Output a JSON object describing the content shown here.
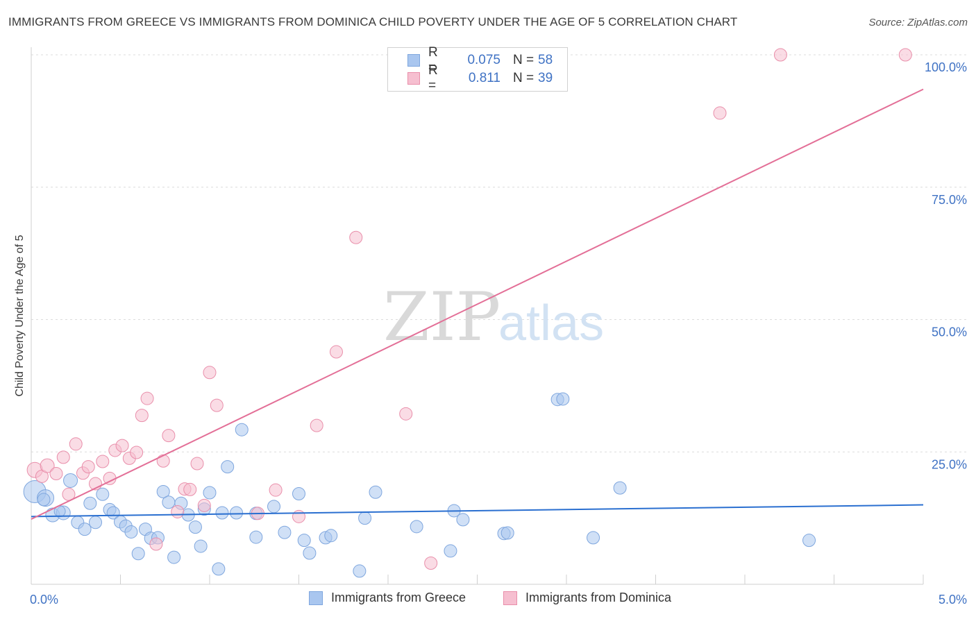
{
  "title": "IMMIGRANTS FROM GREECE VS IMMIGRANTS FROM DOMINICA CHILD POVERTY UNDER THE AGE OF 5 CORRELATION CHART",
  "source": "Source: ZipAtlas.com",
  "watermark": {
    "zip": "ZIP",
    "atlas": "atlas"
  },
  "legend": {
    "rows": [
      {
        "r_label": "R =",
        "r_value": "0.075",
        "n_label": "N =",
        "n_value": "58",
        "color": "#a9c6ef",
        "border": "#7ea6de"
      },
      {
        "r_label": "R =",
        "r_value": "0.811",
        "n_label": "N =",
        "n_value": "39",
        "color": "#f6bfd0",
        "border": "#e98eaa"
      }
    ]
  },
  "bottom_legend": {
    "greece": "Immigrants from Greece",
    "dominica": "Immigrants from Dominica"
  },
  "chart_data": {
    "type": "scatter",
    "title": "IMMIGRANTS FROM GREECE VS IMMIGRANTS FROM DOMINICA CHILD POVERTY UNDER THE AGE OF 5 CORRELATION CHART",
    "xlabel": "",
    "ylabel": "Child Poverty Under the Age of 5",
    "xlim": [
      0,
      5
    ],
    "ylim": [
      0,
      100
    ],
    "x_tick_labels": {
      "min": "0.0%",
      "max": "5.0%"
    },
    "y_ticks": [
      {
        "value": 25,
        "label": "25.0%"
      },
      {
        "value": 50,
        "label": "50.0%"
      },
      {
        "value": 75,
        "label": "75.0%"
      },
      {
        "value": 100,
        "label": "100.0%"
      }
    ],
    "series": [
      {
        "name": "Immigrants from Greece",
        "color": "#a9c6ef",
        "stroke": "#7ea6de",
        "line_color": "#2a6fd0",
        "trend": {
          "x0": 0,
          "y0": 12.8,
          "x1": 5,
          "y1": 15.0
        },
        "points": [
          {
            "x": 0.02,
            "y": 17.5,
            "s": 16
          },
          {
            "x": 0.08,
            "y": 16.3,
            "s": 12
          },
          {
            "x": 0.12,
            "y": 13.1,
            "s": 10
          },
          {
            "x": 0.18,
            "y": 13.5,
            "s": 10
          },
          {
            "x": 0.22,
            "y": 19.6,
            "s": 10
          },
          {
            "x": 0.26,
            "y": 11.7,
            "s": 9
          },
          {
            "x": 0.3,
            "y": 10.4,
            "s": 9
          },
          {
            "x": 0.33,
            "y": 15.3,
            "s": 9
          },
          {
            "x": 0.36,
            "y": 11.7,
            "s": 9
          },
          {
            "x": 0.4,
            "y": 17.0,
            "s": 9
          },
          {
            "x": 0.44,
            "y": 14.1,
            "s": 9
          },
          {
            "x": 0.46,
            "y": 13.5,
            "s": 9
          },
          {
            "x": 0.5,
            "y": 11.8,
            "s": 9
          },
          {
            "x": 0.53,
            "y": 11.0,
            "s": 9
          },
          {
            "x": 0.56,
            "y": 9.9,
            "s": 9
          },
          {
            "x": 0.6,
            "y": 5.8,
            "s": 9
          },
          {
            "x": 0.64,
            "y": 10.4,
            "s": 9
          },
          {
            "x": 0.67,
            "y": 8.7,
            "s": 9
          },
          {
            "x": 0.71,
            "y": 8.8,
            "s": 9
          },
          {
            "x": 0.74,
            "y": 17.5,
            "s": 9
          },
          {
            "x": 0.77,
            "y": 15.5,
            "s": 9
          },
          {
            "x": 0.8,
            "y": 5.1,
            "s": 9
          },
          {
            "x": 0.84,
            "y": 15.3,
            "s": 9
          },
          {
            "x": 0.88,
            "y": 13.1,
            "s": 9
          },
          {
            "x": 0.92,
            "y": 10.8,
            "s": 9
          },
          {
            "x": 0.95,
            "y": 7.2,
            "s": 9
          },
          {
            "x": 0.97,
            "y": 14.2,
            "s": 9
          },
          {
            "x": 1.0,
            "y": 17.3,
            "s": 9
          },
          {
            "x": 1.05,
            "y": 2.9,
            "s": 9
          },
          {
            "x": 1.07,
            "y": 13.5,
            "s": 9
          },
          {
            "x": 1.1,
            "y": 22.2,
            "s": 9
          },
          {
            "x": 1.15,
            "y": 13.5,
            "s": 9
          },
          {
            "x": 1.18,
            "y": 29.2,
            "s": 9
          },
          {
            "x": 1.26,
            "y": 8.9,
            "s": 9
          },
          {
            "x": 1.26,
            "y": 13.4,
            "s": 9
          },
          {
            "x": 1.36,
            "y": 14.7,
            "s": 9
          },
          {
            "x": 1.42,
            "y": 9.8,
            "s": 9
          },
          {
            "x": 1.5,
            "y": 17.1,
            "s": 9
          },
          {
            "x": 1.53,
            "y": 8.3,
            "s": 9
          },
          {
            "x": 1.56,
            "y": 5.9,
            "s": 9
          },
          {
            "x": 1.65,
            "y": 8.8,
            "s": 9
          },
          {
            "x": 1.68,
            "y": 9.2,
            "s": 9
          },
          {
            "x": 1.84,
            "y": 2.5,
            "s": 9
          },
          {
            "x": 1.87,
            "y": 12.5,
            "s": 9
          },
          {
            "x": 1.93,
            "y": 17.4,
            "s": 9
          },
          {
            "x": 2.16,
            "y": 10.9,
            "s": 9
          },
          {
            "x": 2.35,
            "y": 6.3,
            "s": 9
          },
          {
            "x": 2.37,
            "y": 13.9,
            "s": 9
          },
          {
            "x": 2.42,
            "y": 12.2,
            "s": 9
          },
          {
            "x": 2.65,
            "y": 9.6,
            "s": 9
          },
          {
            "x": 2.67,
            "y": 9.7,
            "s": 9
          },
          {
            "x": 2.95,
            "y": 34.9,
            "s": 9
          },
          {
            "x": 2.98,
            "y": 35.0,
            "s": 9
          },
          {
            "x": 3.15,
            "y": 8.8,
            "s": 9
          },
          {
            "x": 3.3,
            "y": 18.2,
            "s": 9
          },
          {
            "x": 4.36,
            "y": 8.3,
            "s": 9
          },
          {
            "x": 0.16,
            "y": 13.8,
            "s": 8
          },
          {
            "x": 0.07,
            "y": 16.0,
            "s": 9
          }
        ]
      },
      {
        "name": "Immigrants from Dominica",
        "color": "#f6bfd0",
        "stroke": "#e98eaa",
        "line_color": "#e36f97",
        "trend": {
          "x0": 0,
          "y0": 12.3,
          "x1": 5,
          "y1": 93.5
        },
        "points": [
          {
            "x": 0.02,
            "y": 21.6,
            "s": 11
          },
          {
            "x": 0.06,
            "y": 20.4,
            "s": 9
          },
          {
            "x": 0.09,
            "y": 22.4,
            "s": 10
          },
          {
            "x": 0.14,
            "y": 20.9,
            "s": 9
          },
          {
            "x": 0.18,
            "y": 24.0,
            "s": 9
          },
          {
            "x": 0.21,
            "y": 17.0,
            "s": 9
          },
          {
            "x": 0.25,
            "y": 26.5,
            "s": 9
          },
          {
            "x": 0.29,
            "y": 21.0,
            "s": 9
          },
          {
            "x": 0.32,
            "y": 22.2,
            "s": 9
          },
          {
            "x": 0.36,
            "y": 19.0,
            "s": 9
          },
          {
            "x": 0.4,
            "y": 23.2,
            "s": 9
          },
          {
            "x": 0.44,
            "y": 20.0,
            "s": 9
          },
          {
            "x": 0.47,
            "y": 25.3,
            "s": 9
          },
          {
            "x": 0.51,
            "y": 26.2,
            "s": 9
          },
          {
            "x": 0.55,
            "y": 23.8,
            "s": 9
          },
          {
            "x": 0.59,
            "y": 24.9,
            "s": 9
          },
          {
            "x": 0.62,
            "y": 31.9,
            "s": 9
          },
          {
            "x": 0.65,
            "y": 35.1,
            "s": 9
          },
          {
            "x": 0.7,
            "y": 7.6,
            "s": 9
          },
          {
            "x": 0.74,
            "y": 23.3,
            "s": 9
          },
          {
            "x": 0.77,
            "y": 28.1,
            "s": 9
          },
          {
            "x": 0.82,
            "y": 13.7,
            "s": 9
          },
          {
            "x": 0.86,
            "y": 18.0,
            "s": 9
          },
          {
            "x": 0.89,
            "y": 17.9,
            "s": 9
          },
          {
            "x": 0.93,
            "y": 22.8,
            "s": 9
          },
          {
            "x": 0.97,
            "y": 14.9,
            "s": 9
          },
          {
            "x": 1.0,
            "y": 40.0,
            "s": 9
          },
          {
            "x": 1.04,
            "y": 33.8,
            "s": 9
          },
          {
            "x": 1.27,
            "y": 13.4,
            "s": 9
          },
          {
            "x": 1.37,
            "y": 17.8,
            "s": 9
          },
          {
            "x": 1.5,
            "y": 12.8,
            "s": 9
          },
          {
            "x": 1.6,
            "y": 30.0,
            "s": 9
          },
          {
            "x": 1.71,
            "y": 43.9,
            "s": 9
          },
          {
            "x": 1.82,
            "y": 65.5,
            "s": 9
          },
          {
            "x": 2.1,
            "y": 32.2,
            "s": 9
          },
          {
            "x": 2.24,
            "y": 4.0,
            "s": 9
          },
          {
            "x": 3.86,
            "y": 89.0,
            "s": 9
          },
          {
            "x": 4.2,
            "y": 100.0,
            "s": 9
          },
          {
            "x": 4.9,
            "y": 100.0,
            "s": 9
          }
        ]
      }
    ]
  }
}
